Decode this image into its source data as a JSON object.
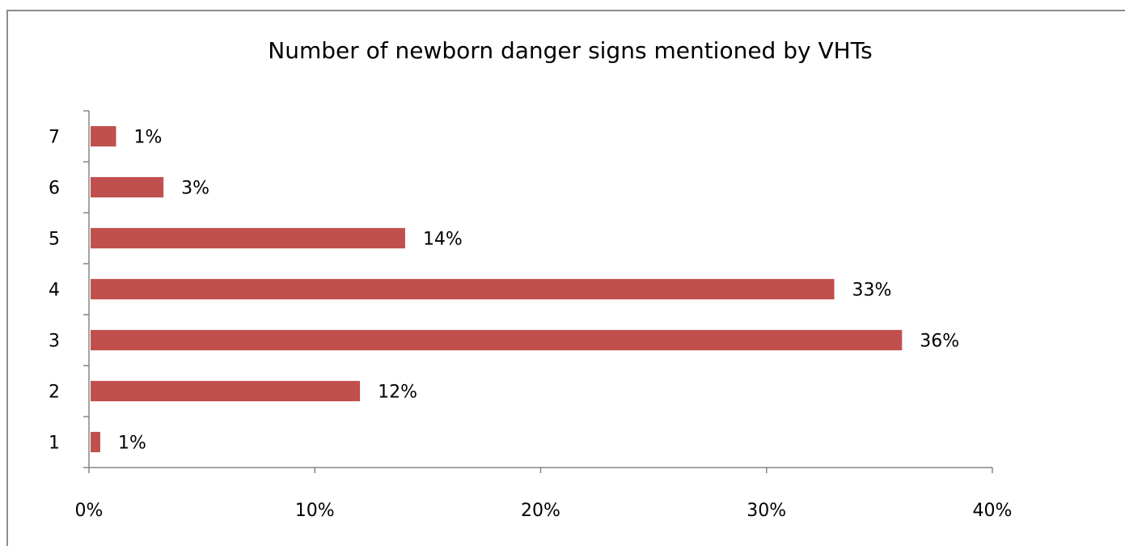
{
  "chart_data": {
    "type": "bar",
    "orientation": "horizontal",
    "title": "Number of newborn danger signs mentioned by  VHTs",
    "categories": [
      "1",
      "2",
      "3",
      "4",
      "5",
      "6",
      "7"
    ],
    "values": [
      0.5,
      12,
      36,
      33,
      14,
      3.3,
      1.2
    ],
    "data_labels": [
      "1%",
      "12%",
      "36%",
      "33%",
      "14%",
      "3%",
      "1%"
    ],
    "xlim": [
      0,
      40
    ],
    "x_ticks": [
      0,
      10,
      20,
      30,
      40
    ],
    "x_tick_labels": [
      "0%",
      "10%",
      "20%",
      "30%",
      "40%"
    ],
    "xlabel": "",
    "ylabel": "",
    "bar_color": "#c0504d",
    "grid": false,
    "legend": "none"
  }
}
